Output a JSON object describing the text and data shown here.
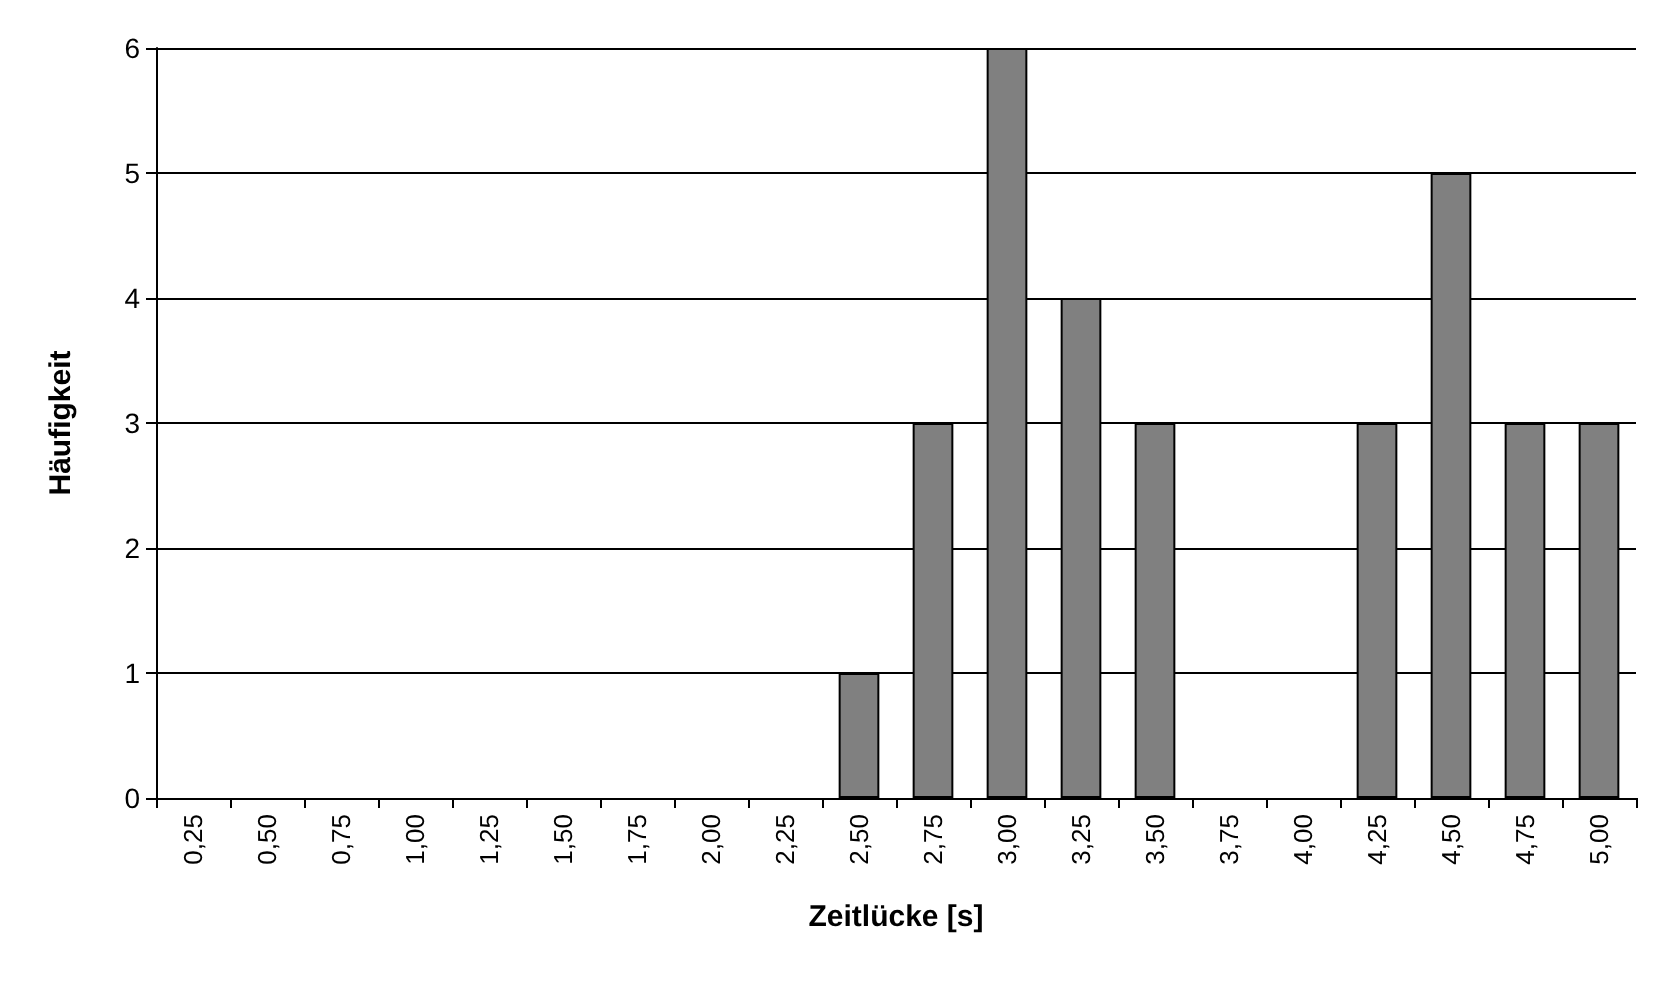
{
  "chart_data": {
    "type": "bar",
    "xlabel": "Zeitlücke [s]",
    "ylabel": "Häufigkeit",
    "categories": [
      "0,25",
      "0,50",
      "0,75",
      "1,00",
      "1,25",
      "1,50",
      "1,75",
      "2,00",
      "2,25",
      "2,50",
      "2,75",
      "3,00",
      "3,25",
      "3,50",
      "3,75",
      "4,00",
      "4,25",
      "4,50",
      "4,75",
      "5,00"
    ],
    "values": [
      0,
      0,
      0,
      0,
      0,
      0,
      0,
      0,
      0,
      1,
      3,
      6,
      4,
      3,
      0,
      0,
      3,
      5,
      3,
      3
    ],
    "color": "#808080",
    "ylim": [
      0,
      6
    ],
    "yticks": [
      0,
      1,
      2,
      3,
      4,
      5,
      6
    ],
    "grid": "y"
  }
}
